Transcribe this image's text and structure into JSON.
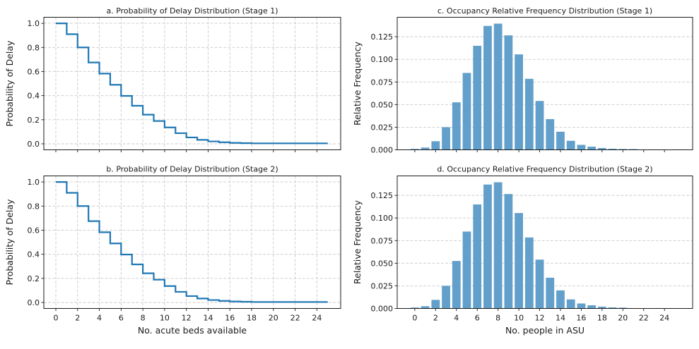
{
  "figure": {
    "background": "#ffffff",
    "line_color": "#1f77b4",
    "bar_color": "#62a0cb",
    "grid_color": "#c9c9c9",
    "axis_color": "#1a1a1a"
  },
  "chart_data": [
    {
      "id": "a",
      "type": "step",
      "title": "a. Probability of Delay Distribution (Stage 1)",
      "xlabel": "",
      "ylabel": "Probability of Delay",
      "x": [
        0,
        1,
        2,
        3,
        4,
        5,
        6,
        7,
        8,
        9,
        10,
        11,
        12,
        13,
        14,
        15,
        16,
        17,
        18,
        19,
        20,
        21,
        22,
        23,
        24,
        25
      ],
      "values": [
        1.0,
        0.91,
        0.8,
        0.675,
        0.583,
        0.49,
        0.398,
        0.316,
        0.242,
        0.189,
        0.136,
        0.088,
        0.053,
        0.033,
        0.02,
        0.013,
        0.008,
        0.006,
        0.004,
        0.004,
        0.004,
        0.004,
        0.004,
        0.004,
        0.004,
        0.004
      ],
      "xlim": [
        -1.1,
        26.2
      ],
      "ylim": [
        -0.05,
        1.05
      ],
      "xticks": [
        0,
        2,
        4,
        6,
        8,
        10,
        12,
        14,
        16,
        18,
        20,
        22,
        24
      ],
      "xtick_labels": [],
      "yticks": [
        0.0,
        0.2,
        0.4,
        0.6,
        0.8,
        1.0
      ],
      "ytick_labels": [
        "0.0",
        "0.2",
        "0.4",
        "0.6",
        "0.8",
        "1.0"
      ],
      "grid": "both",
      "legend": "none"
    },
    {
      "id": "b",
      "type": "step",
      "title": "b. Probability of Delay Distribution (Stage 2)",
      "xlabel": "No. acute beds available",
      "ylabel": "Probability of Delay",
      "x": [
        0,
        1,
        2,
        3,
        4,
        5,
        6,
        7,
        8,
        9,
        10,
        11,
        12,
        13,
        14,
        15,
        16,
        17,
        18,
        19,
        20,
        21,
        22,
        23,
        24,
        25
      ],
      "values": [
        1.0,
        0.91,
        0.8,
        0.675,
        0.583,
        0.49,
        0.398,
        0.316,
        0.242,
        0.189,
        0.136,
        0.088,
        0.053,
        0.033,
        0.02,
        0.013,
        0.008,
        0.006,
        0.004,
        0.004,
        0.004,
        0.004,
        0.004,
        0.004,
        0.004,
        0.004
      ],
      "xlim": [
        -1.1,
        26.2
      ],
      "ylim": [
        -0.05,
        1.05
      ],
      "xticks": [
        0,
        2,
        4,
        6,
        8,
        10,
        12,
        14,
        16,
        18,
        20,
        22,
        24
      ],
      "xtick_labels": [
        "0",
        "2",
        "4",
        "6",
        "8",
        "10",
        "12",
        "14",
        "16",
        "18",
        "20",
        "22",
        "24"
      ],
      "yticks": [
        0.0,
        0.2,
        0.4,
        0.6,
        0.8,
        1.0
      ],
      "ytick_labels": [
        "0.0",
        "0.2",
        "0.4",
        "0.6",
        "0.8",
        "1.0"
      ],
      "grid": "both",
      "legend": "none"
    },
    {
      "id": "c",
      "type": "bar",
      "title": "c. Occupancy Relative Frequency Distribution (Stage 1)",
      "xlabel": "",
      "ylabel": "Relative Frequency",
      "x": [
        0,
        1,
        2,
        3,
        4,
        5,
        6,
        7,
        8,
        9,
        10,
        11,
        12,
        13,
        14,
        15,
        16,
        17,
        18,
        19,
        20,
        21
      ],
      "values": [
        0.001,
        0.0025,
        0.0095,
        0.025,
        0.0525,
        0.085,
        0.115,
        0.137,
        0.1395,
        0.1265,
        0.1055,
        0.0785,
        0.054,
        0.034,
        0.02,
        0.01,
        0.0055,
        0.0035,
        0.002,
        0.0012,
        0.0009,
        0.0008
      ],
      "bar_width": 0.8,
      "xlim": [
        -1.69,
        26.69
      ],
      "ylim": [
        0,
        0.1465
      ],
      "xticks": [
        0,
        2,
        4,
        6,
        8,
        10,
        12,
        14,
        16,
        18,
        20,
        22,
        24
      ],
      "xtick_labels": [],
      "yticks": [
        0.0,
        0.025,
        0.05,
        0.075,
        0.1,
        0.125
      ],
      "ytick_labels": [
        "0.000",
        "0.025",
        "0.050",
        "0.075",
        "0.100",
        "0.125"
      ],
      "grid": "y",
      "legend": "none"
    },
    {
      "id": "d",
      "type": "bar",
      "title": "d. Occupancy Relative Frequency Distribution (Stage 2)",
      "xlabel": "No. people in ASU",
      "ylabel": "Relative Frequency",
      "x": [
        0,
        1,
        2,
        3,
        4,
        5,
        6,
        7,
        8,
        9,
        10,
        11,
        12,
        13,
        14,
        15,
        16,
        17,
        18,
        19,
        20
      ],
      "values": [
        0.001,
        0.0025,
        0.0095,
        0.025,
        0.0525,
        0.085,
        0.115,
        0.137,
        0.1395,
        0.1265,
        0.1055,
        0.0785,
        0.054,
        0.034,
        0.02,
        0.01,
        0.0055,
        0.0035,
        0.002,
        0.0012,
        0.0009
      ],
      "bar_width": 0.8,
      "xlim": [
        -1.69,
        26.69
      ],
      "ylim": [
        0,
        0.1465
      ],
      "xticks": [
        0,
        2,
        4,
        6,
        8,
        10,
        12,
        14,
        16,
        18,
        20,
        22,
        24
      ],
      "xtick_labels": [
        "0",
        "2",
        "4",
        "6",
        "8",
        "10",
        "12",
        "14",
        "16",
        "18",
        "20",
        "22",
        "24"
      ],
      "yticks": [
        0.0,
        0.025,
        0.05,
        0.075,
        0.1,
        0.125
      ],
      "ytick_labels": [
        "0.000",
        "0.025",
        "0.050",
        "0.075",
        "0.100",
        "0.125"
      ],
      "grid": "y",
      "legend": "none"
    }
  ]
}
